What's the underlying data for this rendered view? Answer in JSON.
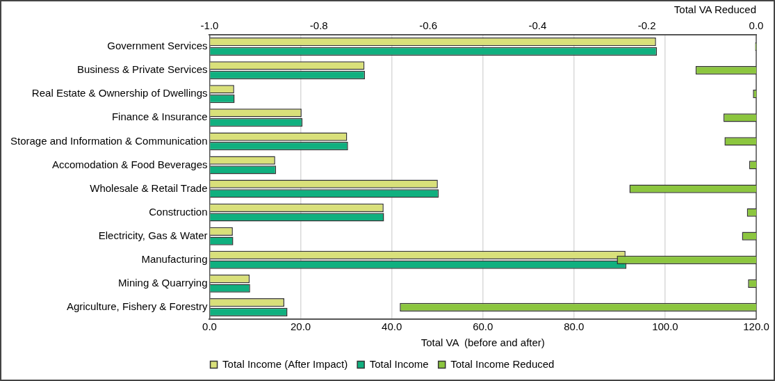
{
  "chart_data": {
    "type": "bar",
    "orientation": "horizontal",
    "xlabel": "Total VA  (before and after)",
    "x2label": "Total VA Reduced",
    "categories": [
      "Government Services",
      "Business & Private Services",
      "Real Estate & Ownership of Dwellings",
      "Finance & Insurance",
      "Storage and Information & Communication",
      "Accomodation & Food Beverages",
      "Wholesale & Retail Trade",
      "Construction",
      "Electricity, Gas & Water",
      "Manufacturing",
      "Mining & Quarrying",
      "Agriculture, Fishery & Forestry"
    ],
    "series": [
      {
        "name": "Total Income (After Impact)",
        "color": "#d9e07a",
        "values": [
          98.0,
          34.0,
          5.4,
          20.2,
          30.2,
          14.4,
          50.1,
          38.2,
          5.1,
          91.3,
          8.8,
          16.4
        ]
      },
      {
        "name": "Total Income",
        "color": "#10b07f",
        "values": [
          98.2,
          34.1,
          5.5,
          20.4,
          30.4,
          14.6,
          50.3,
          38.3,
          5.2,
          91.5,
          8.9,
          17.1
        ]
      },
      {
        "name": "Total Income Reduced",
        "color": "#8cc63f",
        "axis": "x2",
        "values": [
          -0.002,
          -0.111,
          -0.006,
          -0.06,
          -0.058,
          -0.013,
          -0.232,
          -0.017,
          -0.026,
          -0.255,
          -0.015,
          -0.652
        ]
      }
    ],
    "xlim": [
      0,
      120
    ],
    "xticks": [
      {
        "value": 0,
        "label": "0.0"
      },
      {
        "value": 20,
        "label": "20.0"
      },
      {
        "value": 40,
        "label": "40.0"
      },
      {
        "value": 60,
        "label": "60.0"
      },
      {
        "value": 80,
        "label": "80.0"
      },
      {
        "value": 100,
        "label": "100.0"
      },
      {
        "value": 120,
        "label": "120.0"
      }
    ],
    "x2lim": [
      -1,
      0
    ],
    "x2ticks": [
      {
        "value": -1,
        "label": "-1.0"
      },
      {
        "value": -0.8,
        "label": "-0.8"
      },
      {
        "value": -0.6,
        "label": "-0.6"
      },
      {
        "value": -0.4,
        "label": "-0.4"
      },
      {
        "value": -0.2,
        "label": "-0.2"
      },
      {
        "value": 0,
        "label": "0.0"
      }
    ],
    "grid": "x",
    "legend": "bottom"
  }
}
